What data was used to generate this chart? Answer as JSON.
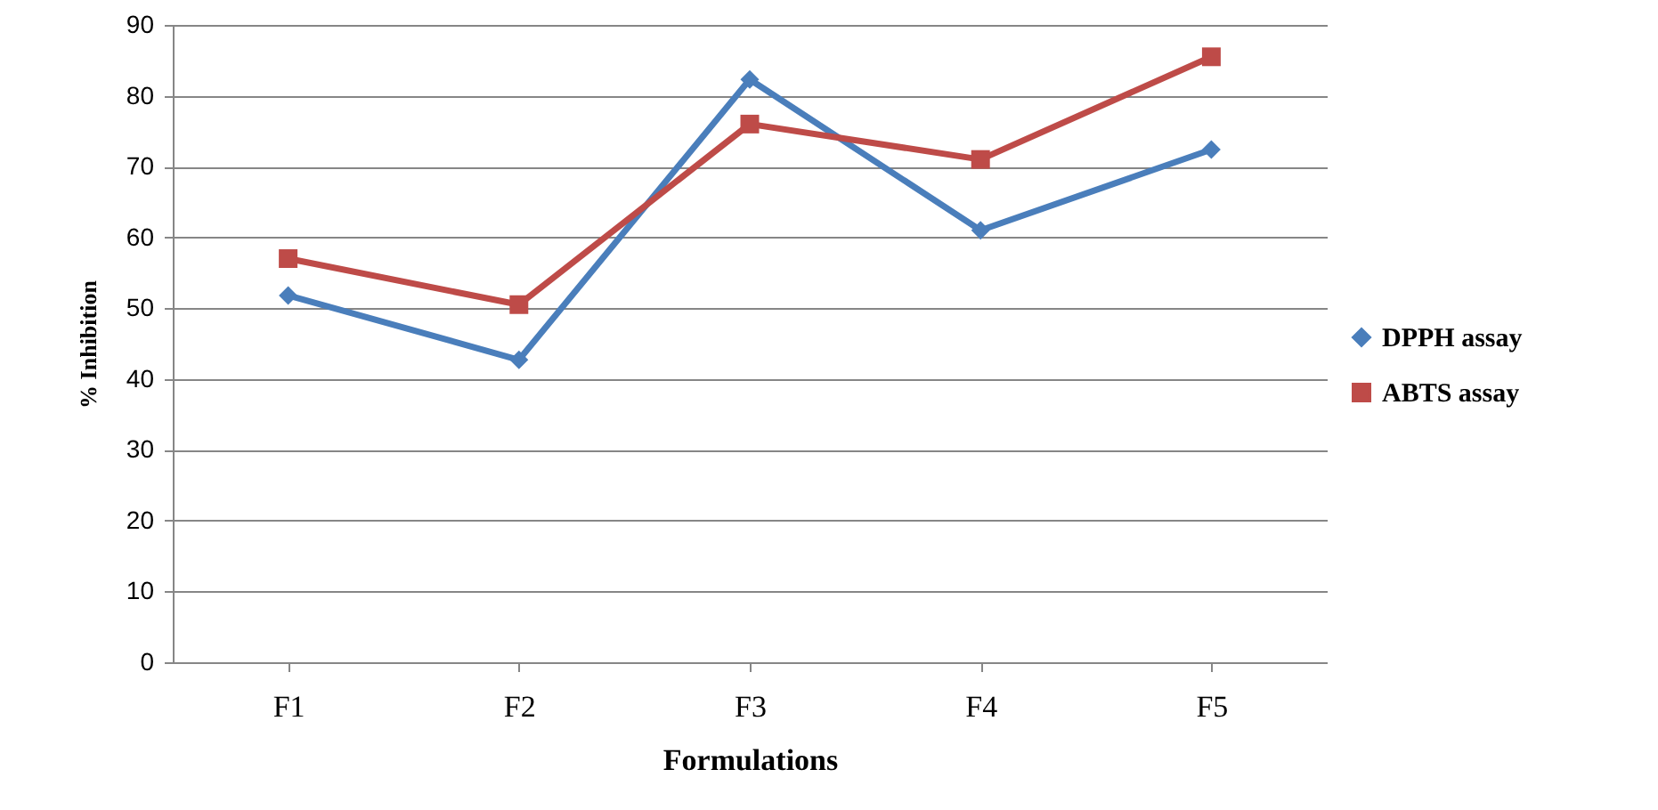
{
  "chart_data": {
    "type": "line",
    "xlabel": "Formulations",
    "ylabel": "% Inhibition",
    "categories": [
      "F1",
      "F2",
      "F3",
      "F4",
      "F5"
    ],
    "series": [
      {
        "name": "DPPH assay",
        "color": "#4a7ebb",
        "marker": "diamond",
        "values": [
          51.8,
          42.7,
          82.3,
          61,
          72.4
        ]
      },
      {
        "name": "ABTS assay",
        "color": "#be4b48",
        "marker": "square",
        "values": [
          57,
          50.5,
          76,
          71,
          85.5
        ]
      }
    ],
    "ylim": [
      0,
      90
    ],
    "yticks": [
      0,
      10,
      20,
      30,
      40,
      50,
      60,
      70,
      80,
      90
    ],
    "grid": "y",
    "legend": "right"
  }
}
